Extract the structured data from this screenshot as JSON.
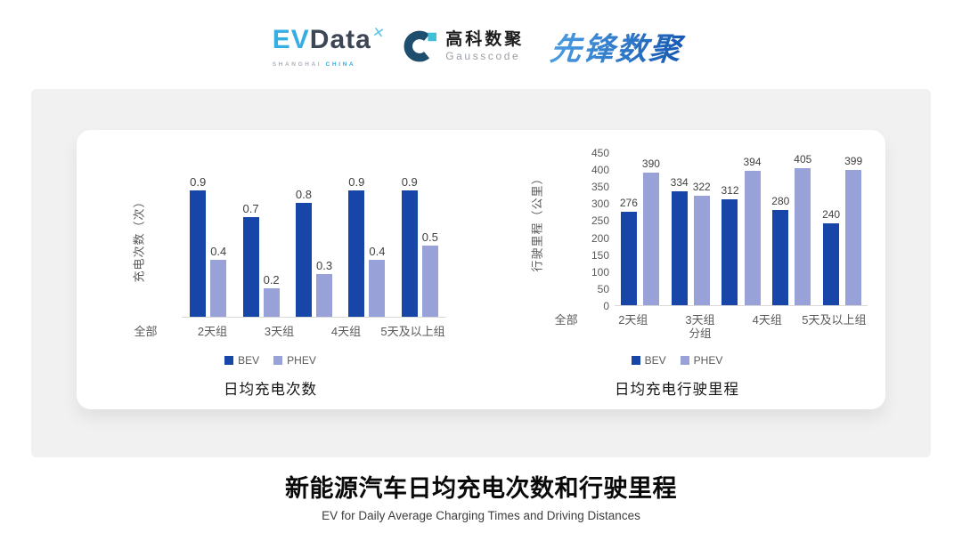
{
  "header": {
    "evdata": {
      "ev": "EV",
      "data": "Data",
      "star": "✕",
      "sub_left": "SHANGHAI",
      "sub_right": "CHINA"
    },
    "gausscode": {
      "cn": "高科数聚",
      "en": "Gausscode",
      "icon": "gausscode-g-icon"
    },
    "xianfeng": "先锋数聚"
  },
  "footer": {
    "title": "新能源汽车日均充电次数和行驶里程",
    "subtitle": "EV for Daily Average Charging Times and Driving Distances"
  },
  "colors": {
    "bev": "#1745a8",
    "phev": "#98a2d8",
    "axis_line": "#d9d9d9",
    "tick_text": "#595959",
    "value_text": "#404040",
    "panel_bg": "#f1f1f2",
    "card_bg": "#ffffff",
    "evdata_blue": "#35aee3",
    "evdata_dark": "#3d4655",
    "gauss_dark": "#1e4d6d",
    "gauss_cyan": "#3fc0d8",
    "xianfeng_blue_1": "#4a9be0",
    "xianfeng_blue_2": "#1a5cb5"
  },
  "chart_data": [
    {
      "type": "bar",
      "title": "日均充电次数",
      "ylabel": "充电次数（次）",
      "xlabel": "",
      "categories": [
        "全部",
        "2天组",
        "3天组",
        "4天组",
        "5天及以上组"
      ],
      "series": [
        {
          "name": "BEV",
          "values": [
            0.9,
            0.7,
            0.8,
            0.9,
            0.9
          ]
        },
        {
          "name": "PHEV",
          "values": [
            0.4,
            0.2,
            0.3,
            0.4,
            0.5
          ]
        }
      ],
      "ylim": [
        0,
        1.0
      ],
      "yticks": null,
      "grid": false,
      "data_labels": true,
      "legend": [
        "BEV",
        "PHEV"
      ],
      "legend_position": "bottom"
    },
    {
      "type": "bar",
      "title": "日均充电行驶里程",
      "ylabel": "行驶里程（公里）",
      "xlabel": "分组",
      "categories": [
        "全部",
        "2天组",
        "3天组",
        "4天组",
        "5天及以上组"
      ],
      "series": [
        {
          "name": "BEV",
          "values": [
            276,
            334,
            312,
            280,
            240
          ]
        },
        {
          "name": "PHEV",
          "values": [
            390,
            322,
            394,
            405,
            399
          ]
        }
      ],
      "ylim": [
        0,
        450
      ],
      "yticks": [
        0,
        50,
        100,
        150,
        200,
        250,
        300,
        350,
        400,
        450
      ],
      "grid": false,
      "data_labels": true,
      "legend": [
        "BEV",
        "PHEV"
      ],
      "legend_position": "bottom"
    }
  ]
}
